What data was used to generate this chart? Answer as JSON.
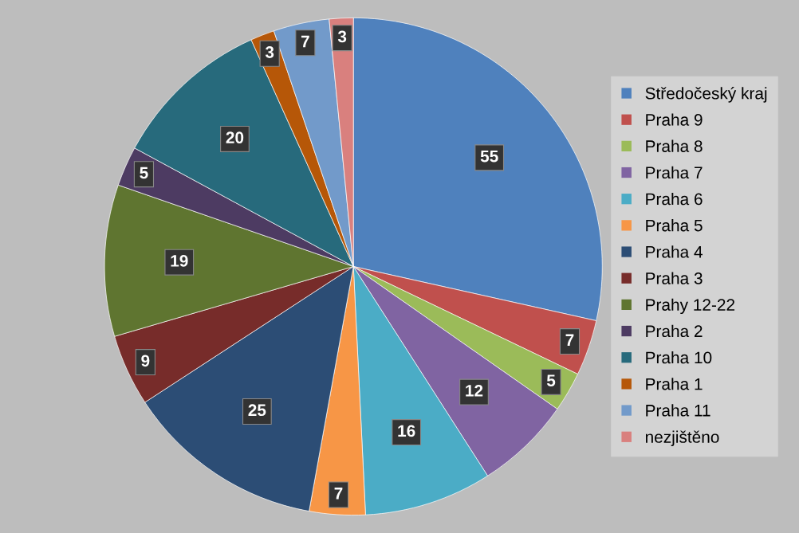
{
  "chart_data": {
    "type": "pie",
    "categories": [
      "Středočeský kraj",
      "Praha 9",
      "Praha 8",
      "Praha 7",
      "Praha 6",
      "Praha 5",
      "Praha 4",
      "Praha 3",
      "Prahy 12-22",
      "Praha 2",
      "Praha 10",
      "Praha 1",
      "Praha 11",
      "nezjištěno"
    ],
    "values": [
      55,
      7,
      5,
      12,
      16,
      7,
      25,
      9,
      19,
      5,
      20,
      3,
      7,
      3
    ],
    "colors": [
      "#4f81bd",
      "#c0504d",
      "#9bbb59",
      "#8064a2",
      "#4bacc6",
      "#f79646",
      "#2c4d75",
      "#772c2a",
      "#5f7530",
      "#4d3b62",
      "#276a7c",
      "#b65708",
      "#729aca",
      "#d9807e"
    ],
    "data_labels": true,
    "legend": "right"
  }
}
